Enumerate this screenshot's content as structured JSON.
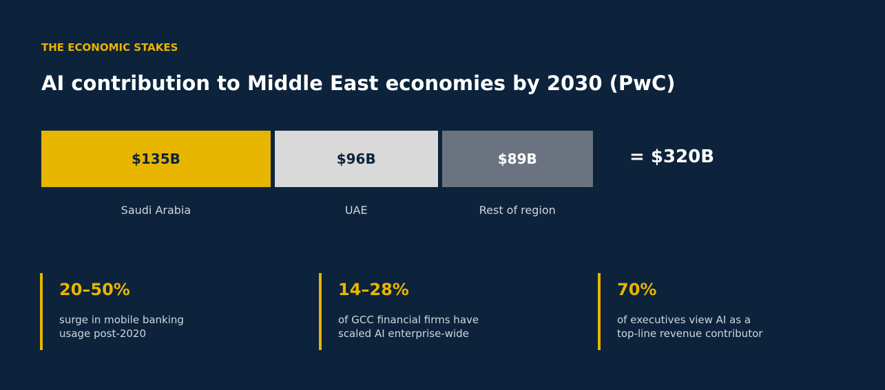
{
  "header": {
    "eyebrow": "THE ECONOMIC STAKES",
    "title": "AI contribution to Middle East economies by 2030 (PwC)"
  },
  "chart_data": {
    "type": "stacked-bar",
    "series": [
      {
        "name": "Saudi Arabia",
        "color": "#e8b500",
        "label_color": "#0c233b",
        "values": [
          135
        ],
        "value_labels": [
          "$135B"
        ]
      },
      {
        "name": "UAE",
        "color": "#d9d9d9",
        "label_color": "#0c233b",
        "values": [
          96
        ],
        "value_labels": [
          "$96B"
        ]
      },
      {
        "name": "Rest of region",
        "color": "#6b7280",
        "label_color": "#ffffff",
        "values": [
          89
        ],
        "value_labels": [
          "$89B"
        ]
      }
    ],
    "total": {
      "value": 320,
      "label": "= $320B"
    }
  },
  "stats": [
    {
      "value": "20–50%",
      "description": "surge in mobile banking\nusage post-2020"
    },
    {
      "value": "14–28%",
      "description": "of GCC financial firms have\nscaled AI enterprise-wide"
    },
    {
      "value": "70%",
      "description": "of executives view AI as a\ntop-line revenue contributor"
    }
  ]
}
